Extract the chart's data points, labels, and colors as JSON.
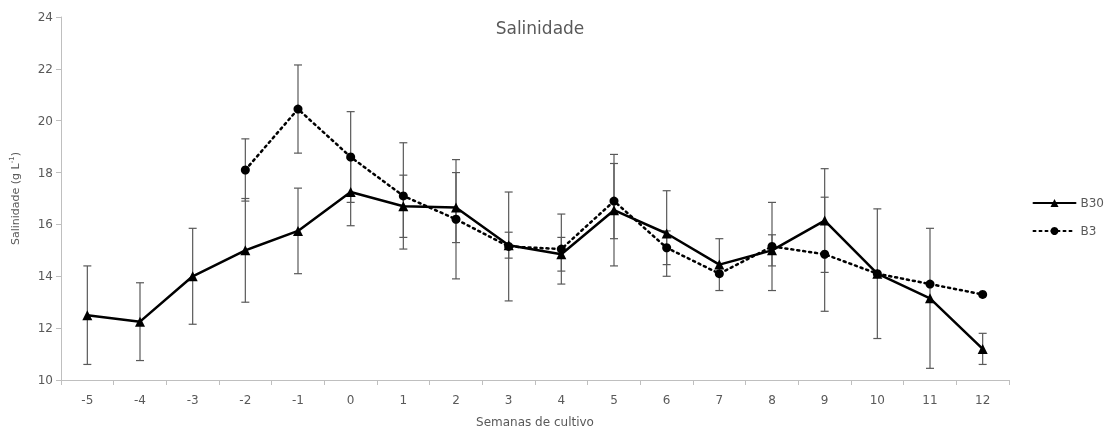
{
  "chart_data": {
    "type": "line",
    "title": "Salinidade",
    "xlabel": "Semanas de cultivo",
    "ylabel": "Salinidade (g L$^{-1}$)",
    "categories": [
      "-5",
      "-4",
      "-3",
      "-2",
      "-1",
      "0",
      "1",
      "2",
      "3",
      "4",
      "5",
      "6",
      "7",
      "8",
      "9",
      "10",
      "11",
      "12"
    ],
    "series": [
      {
        "name": "B30",
        "color": "#000000",
        "marker": "triangle",
        "line_style": "solid",
        "values": [
          12.5,
          12.25,
          14.0,
          15.0,
          15.75,
          17.25,
          16.7,
          16.65,
          15.2,
          14.85,
          16.55,
          15.65,
          14.45,
          15.0,
          16.15,
          14.1,
          13.15,
          11.2
        ],
        "errors": [
          1.9,
          1.5,
          1.85,
          2.0,
          1.65,
          1.3,
          1.2,
          1.35,
          0.5,
          0.65,
          2.15,
          1.65,
          1.0,
          0.6,
          2.0,
          2.5,
          2.7,
          0.6
        ]
      },
      {
        "name": "B3",
        "color": "#000000",
        "marker": "circle",
        "line_style": "dotted",
        "values": [
          null,
          null,
          null,
          18.1,
          20.45,
          18.6,
          17.1,
          16.2,
          15.15,
          15.05,
          16.9,
          15.1,
          14.1,
          15.15,
          14.85,
          14.1,
          13.7,
          13.3
        ],
        "errors": [
          null,
          null,
          null,
          1.2,
          1.7,
          1.75,
          2.05,
          2.3,
          2.1,
          1.35,
          1.45,
          0.65,
          null,
          1.7,
          2.2,
          null,
          null,
          null
        ]
      }
    ],
    "ylim": [
      10,
      24
    ],
    "yticks": [
      10,
      12,
      14,
      16,
      18,
      20,
      22,
      24
    ],
    "grid": false,
    "legend": "right"
  }
}
